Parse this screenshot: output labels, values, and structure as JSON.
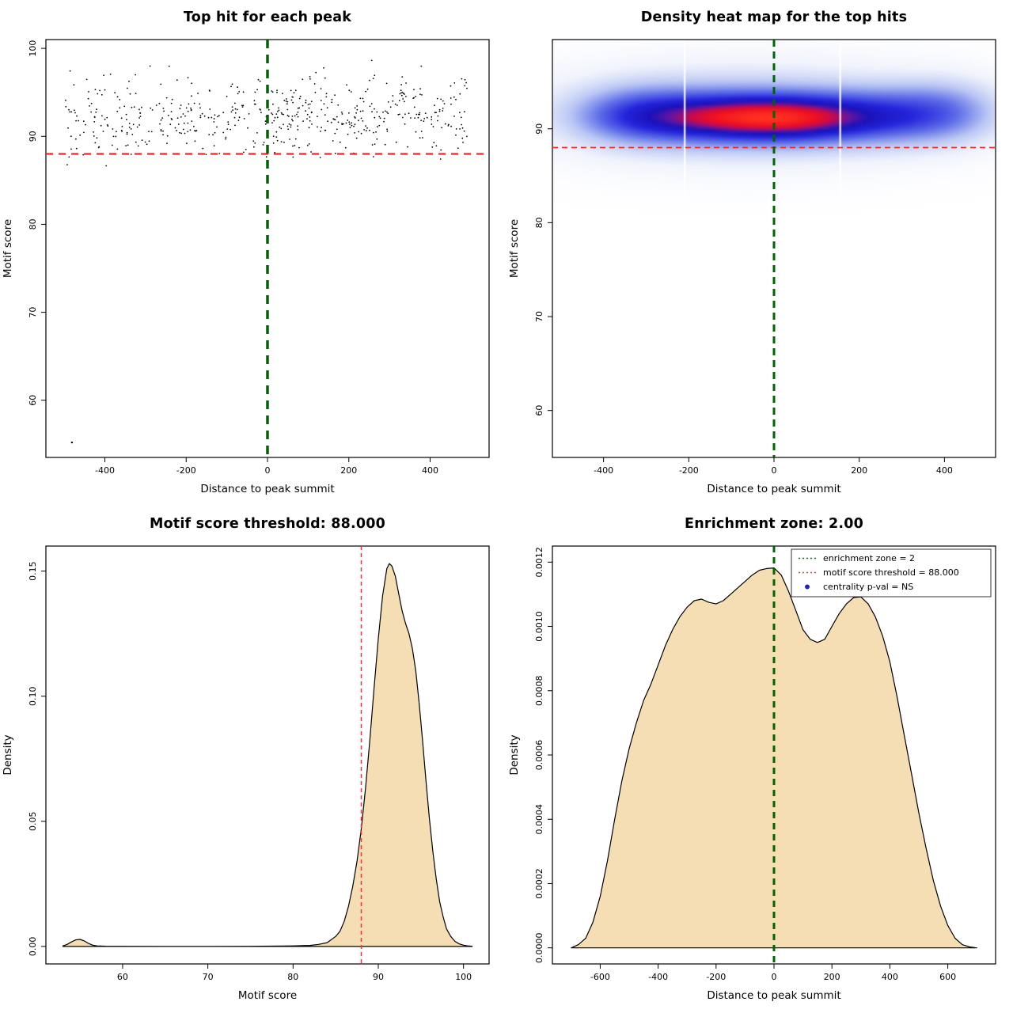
{
  "page": {
    "background": "#ffffff"
  },
  "chart_data": [
    {
      "type": "scatter",
      "title": "Top hit for each peak",
      "xlabel": "Distance to peak summit",
      "ylabel": "Motif score",
      "xlim": [
        -545,
        545
      ],
      "ylim": [
        53.5,
        101
      ],
      "xticks": [
        "-400",
        "-200",
        "0",
        "200",
        "400"
      ],
      "yticks": [
        "60",
        "70",
        "80",
        "90",
        "100"
      ],
      "points": {
        "n": 560,
        "seed": 7,
        "x_min": -497,
        "x_max": 497,
        "y_mean": 92.3,
        "y_sd": 2.2,
        "y_clip": [
          86.0,
          98.7
        ]
      },
      "outliers": [
        [
          -481,
          55.2
        ]
      ],
      "point_color": "#000000",
      "hline": {
        "y": 88,
        "color": "#ff2020",
        "width": 2.2,
        "dash": "9,7"
      },
      "vline": {
        "x": 0,
        "color": "#006400",
        "width": 3.5,
        "dash": "11,8"
      }
    },
    {
      "type": "heatmap",
      "title": "Density heat map for the top hits",
      "xlabel": "Distance to peak summit",
      "ylabel": "Motif score",
      "xlim": [
        -520,
        520
      ],
      "ylim": [
        55,
        99.5
      ],
      "xticks": [
        "-400",
        "-200",
        "0",
        "200",
        "400"
      ],
      "yticks": [
        "60",
        "70",
        "80",
        "90"
      ],
      "kernels": [
        {
          "cx": -60,
          "cy": 91.6,
          "sx": 310,
          "sy": 3.4,
          "a": 0.5
        },
        {
          "cx": -320,
          "cy": 91.4,
          "sx": 100,
          "sy": 2.0,
          "a": 0.7
        },
        {
          "cx": -130,
          "cy": 91.2,
          "sx": 110,
          "sy": 1.8,
          "a": 0.9
        },
        {
          "cx": 40,
          "cy": 91.1,
          "sx": 100,
          "sy": 1.7,
          "a": 1.0
        },
        {
          "cx": 230,
          "cy": 91.3,
          "sx": 110,
          "sy": 1.9,
          "a": 0.75
        },
        {
          "cx": 400,
          "cy": 91.8,
          "sx": 90,
          "sy": 2.2,
          "a": 0.55
        },
        {
          "cx": -30,
          "cy": 91.2,
          "sx": 160,
          "sy": 1.1,
          "a": 0.85
        }
      ],
      "colormap": [
        {
          "t": 0,
          "c": "#ffffff"
        },
        {
          "t": 0.08,
          "c": "#f0f3fc"
        },
        {
          "t": 0.2,
          "c": "#bcc8f4"
        },
        {
          "t": 0.35,
          "c": "#6070e8"
        },
        {
          "t": 0.5,
          "c": "#2424dc"
        },
        {
          "t": 0.62,
          "c": "#1a12b8"
        },
        {
          "t": 0.7,
          "c": "#6414a0"
        },
        {
          "t": 0.78,
          "c": "#c40a50"
        },
        {
          "t": 0.87,
          "c": "#ee1020"
        },
        {
          "t": 1,
          "c": "#ff3020"
        }
      ],
      "white_stripes": [
        -210,
        155
      ],
      "hline": {
        "y": 88,
        "color": "#ff2020",
        "width": 1.6,
        "dash": "7,5"
      },
      "vline": {
        "x": 0,
        "color": "#006400",
        "width": 3,
        "dash": "9,6"
      }
    },
    {
      "type": "area",
      "title": "Motif score threshold: 88.000",
      "xlabel": "Motif score",
      "ylabel": "Density",
      "xlim": [
        51,
        103
      ],
      "ylim": [
        -0.007,
        0.16
      ],
      "xticks": [
        "60",
        "70",
        "80",
        "90",
        "100"
      ],
      "yticks": [
        "0.00",
        "0.05",
        "0.10",
        "0.15"
      ],
      "fill": "#f5deb3",
      "vline": {
        "x": 88,
        "color": "#ff3030",
        "width": 1.5,
        "dash": "5,4"
      },
      "curve": [
        [
          53,
          0.0002
        ],
        [
          53.5,
          0.0008
        ],
        [
          54,
          0.0018
        ],
        [
          54.5,
          0.0026
        ],
        [
          55,
          0.0028
        ],
        [
          55.5,
          0.0022
        ],
        [
          56,
          0.0012
        ],
        [
          56.5,
          0.0005
        ],
        [
          57,
          0.0002
        ],
        [
          58,
          0.0001
        ],
        [
          60,
          5e-05
        ],
        [
          65,
          3e-05
        ],
        [
          70,
          3e-05
        ],
        [
          75,
          5e-05
        ],
        [
          80,
          0.0002
        ],
        [
          82,
          0.0004
        ],
        [
          83,
          0.0008
        ],
        [
          84,
          0.0015
        ],
        [
          85,
          0.004
        ],
        [
          85.5,
          0.006
        ],
        [
          86,
          0.01
        ],
        [
          86.5,
          0.016
        ],
        [
          87,
          0.024
        ],
        [
          87.5,
          0.034
        ],
        [
          88,
          0.047
        ],
        [
          88.5,
          0.063
        ],
        [
          89,
          0.082
        ],
        [
          89.5,
          0.103
        ],
        [
          90,
          0.123
        ],
        [
          90.5,
          0.14
        ],
        [
          91,
          0.151
        ],
        [
          91.3,
          0.153
        ],
        [
          91.6,
          0.152
        ],
        [
          92,
          0.148
        ],
        [
          92.4,
          0.141
        ],
        [
          92.8,
          0.134
        ],
        [
          93.2,
          0.129
        ],
        [
          93.6,
          0.125
        ],
        [
          94,
          0.119
        ],
        [
          94.4,
          0.11
        ],
        [
          94.8,
          0.097
        ],
        [
          95.2,
          0.082
        ],
        [
          95.6,
          0.066
        ],
        [
          96,
          0.051
        ],
        [
          96.4,
          0.038
        ],
        [
          96.8,
          0.027
        ],
        [
          97.2,
          0.018
        ],
        [
          97.6,
          0.012
        ],
        [
          98,
          0.007
        ],
        [
          98.5,
          0.004
        ],
        [
          99,
          0.002
        ],
        [
          99.5,
          0.001
        ],
        [
          100,
          0.0005
        ],
        [
          100.5,
          0.0002
        ],
        [
          101,
          0.0001
        ]
      ]
    },
    {
      "type": "area",
      "title": "Enrichment zone: 2.00",
      "xlabel": "Distance to peak summit",
      "ylabel": "Density",
      "xlim": [
        -765,
        765
      ],
      "ylim": [
        -5e-05,
        0.00125
      ],
      "xticks": [
        "-600",
        "-400",
        "-200",
        "0",
        "200",
        "400",
        "600"
      ],
      "yticks": [
        "0.0000",
        "0.0002",
        "0.0004",
        "0.0006",
        "0.0008",
        "0.0010",
        "0.0012"
      ],
      "fill": "#f5deb3",
      "vline": {
        "x": 0,
        "color": "#006400",
        "width": 3,
        "dash": "8,6"
      },
      "legend": [
        {
          "marker": "line",
          "color": "#008000",
          "label": "enrichment zone = 2"
        },
        {
          "marker": "line",
          "color": "#ff3030",
          "label": "motif score threshold = 88.000"
        },
        {
          "marker": "point",
          "color": "#2222cc",
          "label": "centrality p-val = NS"
        }
      ],
      "curve": [
        [
          -700,
          0
        ],
        [
          -675,
          1e-05
        ],
        [
          -650,
          3e-05
        ],
        [
          -625,
          8e-05
        ],
        [
          -600,
          0.00016
        ],
        [
          -575,
          0.00027
        ],
        [
          -550,
          0.0004
        ],
        [
          -525,
          0.00052
        ],
        [
          -500,
          0.00062
        ],
        [
          -475,
          0.0007
        ],
        [
          -450,
          0.00077
        ],
        [
          -425,
          0.00082
        ],
        [
          -400,
          0.00088
        ],
        [
          -375,
          0.00094
        ],
        [
          -350,
          0.00099
        ],
        [
          -325,
          0.00103
        ],
        [
          -300,
          0.00106
        ],
        [
          -275,
          0.00108
        ],
        [
          -250,
          0.001085
        ],
        [
          -225,
          0.001075
        ],
        [
          -200,
          0.00107
        ],
        [
          -175,
          0.00108
        ],
        [
          -150,
          0.0011
        ],
        [
          -125,
          0.00112
        ],
        [
          -100,
          0.00114
        ],
        [
          -75,
          0.00116
        ],
        [
          -50,
          0.001175
        ],
        [
          -25,
          0.00118
        ],
        [
          0,
          0.001182
        ],
        [
          25,
          0.00116
        ],
        [
          50,
          0.00111
        ],
        [
          75,
          0.00105
        ],
        [
          100,
          0.00099
        ],
        [
          125,
          0.00096
        ],
        [
          150,
          0.00095
        ],
        [
          175,
          0.00096
        ],
        [
          200,
          0.001
        ],
        [
          225,
          0.00104
        ],
        [
          250,
          0.00107
        ],
        [
          275,
          0.00109
        ],
        [
          300,
          0.001092
        ],
        [
          325,
          0.00107
        ],
        [
          350,
          0.00103
        ],
        [
          375,
          0.00097
        ],
        [
          400,
          0.00089
        ],
        [
          425,
          0.00078
        ],
        [
          450,
          0.00066
        ],
        [
          475,
          0.00054
        ],
        [
          500,
          0.00042
        ],
        [
          525,
          0.00031
        ],
        [
          550,
          0.00021
        ],
        [
          575,
          0.00013
        ],
        [
          600,
          7e-05
        ],
        [
          625,
          3e-05
        ],
        [
          650,
          1e-05
        ],
        [
          675,
          3e-06
        ],
        [
          700,
          0
        ]
      ]
    }
  ]
}
